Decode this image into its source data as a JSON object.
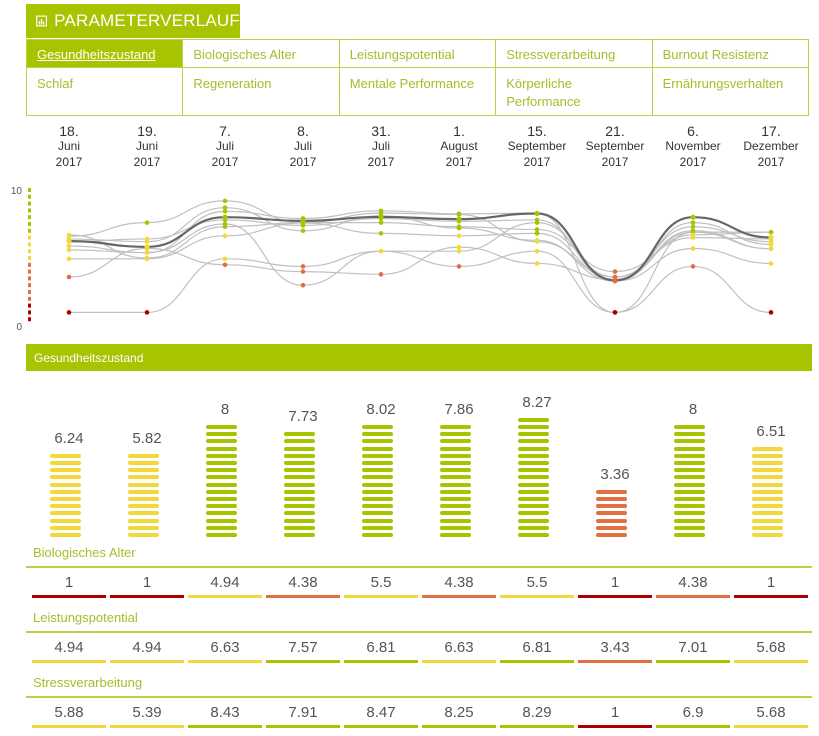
{
  "title": "PARAMETERVERLAUF",
  "tabs": [
    {
      "label": "Gesundheitszustand",
      "active": true
    },
    {
      "label": "Biologisches Alter"
    },
    {
      "label": "Leistungspotential"
    },
    {
      "label": "Stressverarbeitung"
    },
    {
      "label": "Burnout Resistenz"
    },
    {
      "label": "Schlaf"
    },
    {
      "label": "Regeneration"
    },
    {
      "label": "Mentale Performance"
    },
    {
      "label": "Körperliche Performance"
    },
    {
      "label": "Ernährungsverhalten"
    }
  ],
  "dates": [
    {
      "day": "18.",
      "month": "Juni",
      "year": "2017"
    },
    {
      "day": "19.",
      "month": "Juni",
      "year": "2017"
    },
    {
      "day": "7.",
      "month": "Juli",
      "year": "2017"
    },
    {
      "day": "8.",
      "month": "Juli",
      "year": "2017"
    },
    {
      "day": "31.",
      "month": "Juli",
      "year": "2017"
    },
    {
      "day": "1.",
      "month": "August",
      "year": "2017"
    },
    {
      "day": "15.",
      "month": "September",
      "year": "2017"
    },
    {
      "day": "21.",
      "month": "September",
      "year": "2017"
    },
    {
      "day": "6.",
      "month": "November",
      "year": "2017"
    },
    {
      "day": "17.",
      "month": "Dezember",
      "year": "2017"
    }
  ],
  "colors": {
    "accent": "#a8c400",
    "green": "#a8c400",
    "yellow": "#f2d93b",
    "orange": "#e07040",
    "red": "#aa0000",
    "line": "#666666",
    "thin": "#c0c0c0"
  },
  "chart_data": {
    "type": "line",
    "ylim": [
      0,
      10
    ],
    "ytick_labels": [
      "10",
      "0"
    ],
    "categories": [
      "18. Juni 2017",
      "19. Juni 2017",
      "7. Juli 2017",
      "8. Juli 2017",
      "31. Juli 2017",
      "1. August 2017",
      "15. September 2017",
      "21. September 2017",
      "6. November 2017",
      "17. Dezember 2017"
    ],
    "main_series": {
      "name": "Gesundheitszustand",
      "values": [
        6.24,
        5.82,
        8,
        7.73,
        8.02,
        7.86,
        8.27,
        3.36,
        8,
        6.51
      ]
    },
    "series": [
      {
        "name": "Biologisches Alter",
        "values": [
          1,
          1,
          4.94,
          4.38,
          5.5,
          4.38,
          5.5,
          1,
          4.38,
          1
        ]
      },
      {
        "name": "Leistungspotential",
        "values": [
          4.94,
          4.94,
          6.63,
          7.57,
          6.81,
          6.63,
          6.81,
          3.43,
          7.01,
          5.68
        ]
      },
      {
        "name": "Stressverarbeitung",
        "values": [
          5.88,
          5.39,
          8.43,
          7.91,
          8.47,
          8.25,
          8.29,
          1,
          6.9,
          5.68
        ]
      },
      {
        "name": "Burnout Resistenz",
        "values": [
          6.6,
          7.6,
          9.2,
          7.6,
          7.6,
          7.3,
          7.1,
          4.0,
          6.5,
          6.4
        ]
      },
      {
        "name": "Schlaf",
        "values": [
          6.2,
          6.4,
          7.8,
          7.4,
          7.9,
          7.7,
          7.8,
          3.3,
          7.6,
          6.0
        ]
      },
      {
        "name": "Regeneration",
        "values": [
          5.6,
          5.4,
          7.5,
          3.0,
          5.5,
          5.5,
          7.6,
          3.6,
          7.3,
          6.2
        ]
      },
      {
        "name": "Mentale Performance",
        "values": [
          3.6,
          5.7,
          4.5,
          4.0,
          3.8,
          5.8,
          4.6,
          3.4,
          6.9,
          6.9
        ]
      },
      {
        "name": "Körperliche Performance",
        "values": [
          6.4,
          6.2,
          8.7,
          7.0,
          8.1,
          7.2,
          6.3,
          3.3,
          5.7,
          4.6
        ]
      },
      {
        "name": "Ernährungsverhalten",
        "values": [
          6.7,
          5.0,
          7.3,
          7.6,
          8.3,
          8.2,
          6.2,
          3.6,
          6.7,
          6.9
        ]
      }
    ]
  },
  "section_title": "Gesundheitszustand",
  "bar_values": [
    "6.24",
    "5.82",
    "8",
    "7.73",
    "8.02",
    "7.86",
    "8.27",
    "3.36",
    "8",
    "6.51"
  ],
  "rows": [
    {
      "label": "Biologisches Alter",
      "values": [
        "1",
        "1",
        "4.94",
        "4.38",
        "5.5",
        "4.38",
        "5.5",
        "1",
        "4.38",
        "1"
      ]
    },
    {
      "label": "Leistungspotential",
      "values": [
        "4.94",
        "4.94",
        "6.63",
        "7.57",
        "6.81",
        "6.63",
        "6.81",
        "3.43",
        "7.01",
        "5.68"
      ]
    },
    {
      "label": "Stressverarbeitung",
      "values": [
        "5.88",
        "5.39",
        "8.43",
        "7.91",
        "8.47",
        "8.25",
        "8.29",
        "1",
        "6.9",
        "5.68"
      ]
    }
  ]
}
